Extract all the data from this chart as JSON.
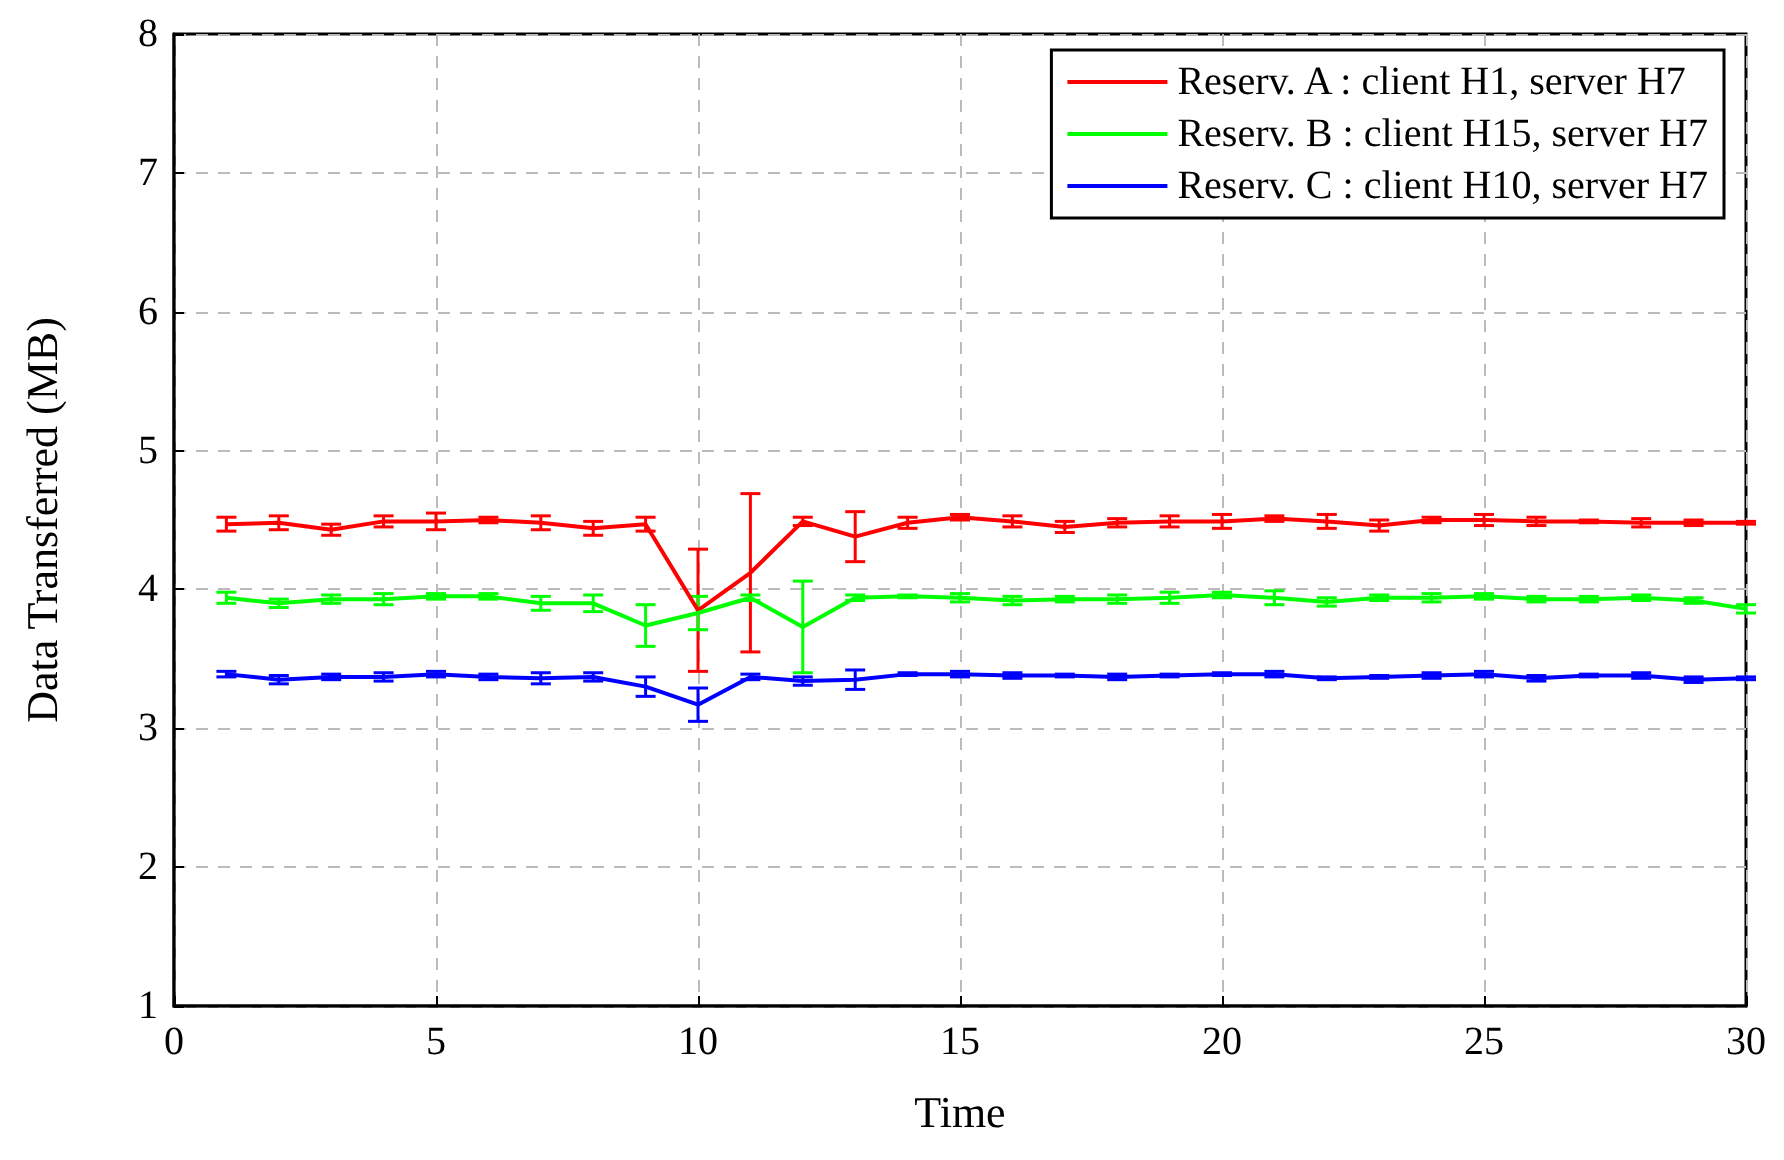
{
  "chart_data": {
    "type": "line",
    "xlabel": "Time",
    "ylabel": "Data Transferred (MB)",
    "x": [
      1,
      2,
      3,
      4,
      5,
      6,
      7,
      8,
      9,
      10,
      11,
      12,
      13,
      14,
      15,
      16,
      17,
      18,
      19,
      20,
      21,
      22,
      23,
      24,
      25,
      26,
      27,
      28,
      29,
      30
    ],
    "xlim": [
      0,
      30
    ],
    "xticks": [
      0,
      5,
      10,
      15,
      20,
      25,
      30
    ],
    "ylim": [
      1,
      8
    ],
    "yticks": [
      1,
      2,
      3,
      4,
      5,
      6,
      7,
      8
    ],
    "grid": true,
    "legend": "top right",
    "marker": "none",
    "line_style": "solid",
    "series": [
      {
        "name": "Reserv. A : client H1, server H7",
        "color": "#ff0000",
        "values": [
          4.47,
          4.48,
          4.43,
          4.49,
          4.49,
          4.5,
          4.48,
          4.44,
          4.47,
          3.85,
          4.12,
          4.49,
          4.38,
          4.48,
          4.52,
          4.49,
          4.45,
          4.48,
          4.49,
          4.49,
          4.51,
          4.49,
          4.46,
          4.5,
          4.5,
          4.49,
          4.49,
          4.48,
          4.48,
          4.48
        ],
        "errors": [
          0.05,
          0.05,
          0.04,
          0.04,
          0.06,
          0.02,
          0.05,
          0.05,
          0.05,
          0.44,
          0.57,
          0.03,
          0.18,
          0.04,
          0.02,
          0.04,
          0.04,
          0.03,
          0.04,
          0.05,
          0.02,
          0.05,
          0.04,
          0.02,
          0.04,
          0.03,
          0.01,
          0.03,
          0.02,
          0.01
        ]
      },
      {
        "name": "Reserv. B : client H15, server H7",
        "color": "#00ff00",
        "values": [
          3.94,
          3.9,
          3.93,
          3.93,
          3.95,
          3.95,
          3.9,
          3.9,
          3.74,
          3.83,
          3.94,
          3.73,
          3.94,
          3.95,
          3.94,
          3.92,
          3.93,
          3.93,
          3.94,
          3.96,
          3.94,
          3.91,
          3.94,
          3.94,
          3.95,
          3.93,
          3.93,
          3.94,
          3.92,
          3.86
        ],
        "errors": [
          0.04,
          0.03,
          0.03,
          0.04,
          0.02,
          0.02,
          0.05,
          0.06,
          0.15,
          0.12,
          0.02,
          0.33,
          0.02,
          0.01,
          0.03,
          0.03,
          0.02,
          0.03,
          0.04,
          0.02,
          0.05,
          0.03,
          0.02,
          0.03,
          0.02,
          0.02,
          0.02,
          0.02,
          0.02,
          0.03
        ]
      },
      {
        "name": "Reserv. C : client H10, server H7",
        "color": "#0000ff",
        "values": [
          3.39,
          3.35,
          3.37,
          3.37,
          3.39,
          3.37,
          3.36,
          3.37,
          3.3,
          3.17,
          3.37,
          3.34,
          3.35,
          3.39,
          3.39,
          3.38,
          3.38,
          3.37,
          3.38,
          3.39,
          3.39,
          3.36,
          3.37,
          3.38,
          3.39,
          3.36,
          3.38,
          3.38,
          3.35,
          3.36
        ],
        "errors": [
          0.02,
          0.03,
          0.02,
          0.03,
          0.02,
          0.02,
          0.04,
          0.03,
          0.07,
          0.12,
          0.02,
          0.03,
          0.07,
          0.01,
          0.02,
          0.02,
          0.01,
          0.02,
          0.01,
          0.01,
          0.02,
          0.01,
          0.01,
          0.02,
          0.02,
          0.02,
          0.01,
          0.02,
          0.02,
          0.01
        ]
      }
    ]
  }
}
